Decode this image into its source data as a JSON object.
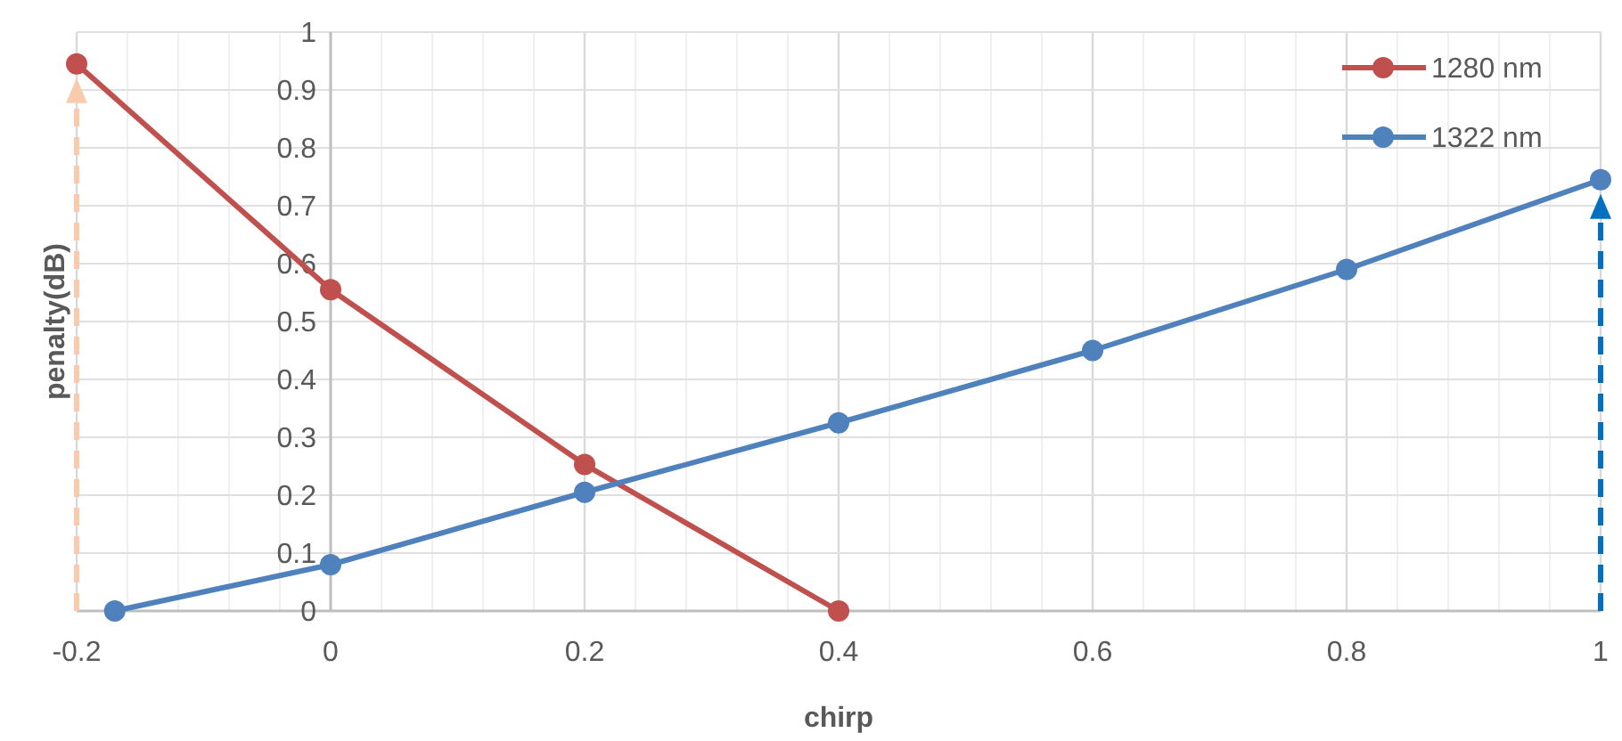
{
  "chart_data": {
    "type": "line",
    "xlabel": "chirp",
    "ylabel": "penalty(dB)",
    "xlim": [
      -0.2,
      1
    ],
    "xticks": [
      -0.2,
      0,
      0.2,
      0.4,
      0.6,
      0.8,
      1
    ],
    "ylim": [
      0,
      1
    ],
    "yticks": [
      0,
      0.1,
      0.2,
      0.3,
      0.4,
      0.5,
      0.6,
      0.7,
      0.8,
      0.9,
      1
    ],
    "grid": true,
    "legend": "top right",
    "marker": "circle",
    "line_style": "solid",
    "series": [
      {
        "name": "1280 nm",
        "color": "#c0504d",
        "x": [
          -0.2,
          0,
          0.2,
          0.4
        ],
        "values": [
          0.945,
          0.555,
          0.253,
          0
        ]
      },
      {
        "name": "1322 nm",
        "color": "#4f81bd",
        "x": [
          -0.17,
          0,
          0.2,
          0.4,
          0.6,
          0.8,
          1
        ],
        "values": [
          0,
          0.08,
          0.205,
          0.325,
          0.45,
          0.59,
          0.745
        ]
      }
    ]
  }
}
